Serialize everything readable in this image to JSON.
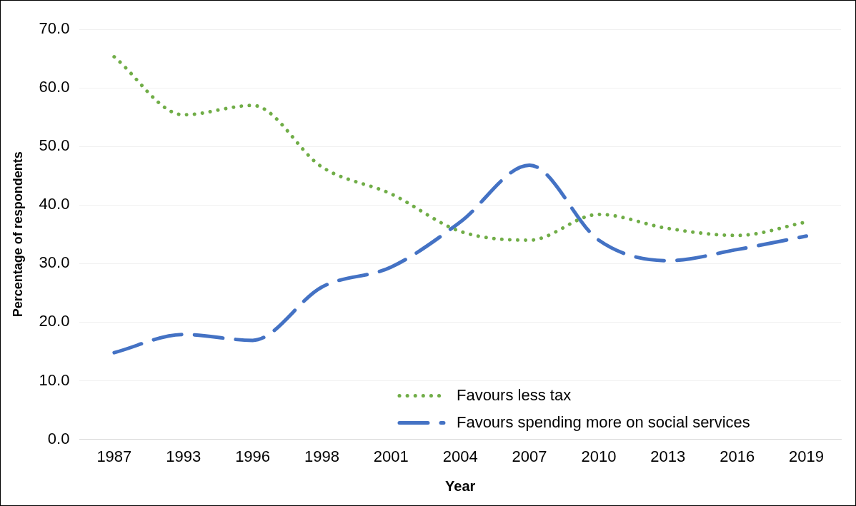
{
  "chart_data": {
    "type": "line",
    "xlabel": "Year",
    "ylabel": "Percentage of respondents",
    "categories": [
      "1987",
      "1993",
      "1996",
      "1998",
      "2001",
      "2004",
      "2007",
      "2010",
      "2013",
      "2016",
      "2019"
    ],
    "series": [
      {
        "name": "Favours less tax",
        "color": "#70ad47",
        "line_style": "dotted",
        "values": [
          65.3,
          55.4,
          57.0,
          46.5,
          41.9,
          35.5,
          34.0,
          38.4,
          36.0,
          34.8,
          37.1
        ]
      },
      {
        "name": "Favours spending more on social services",
        "color": "#4472c4",
        "line_style": "dashed",
        "values": [
          14.8,
          17.9,
          16.9,
          26.0,
          29.4,
          37.1,
          46.8,
          34.0,
          30.5,
          32.4,
          34.7
        ]
      }
    ],
    "ylim": [
      0,
      70
    ],
    "yticks": [
      {
        "value": 0,
        "label": "0.0"
      },
      {
        "value": 10,
        "label": "10.0"
      },
      {
        "value": 20,
        "label": "20.0"
      },
      {
        "value": 30,
        "label": "30.0"
      },
      {
        "value": 40,
        "label": "40.0"
      },
      {
        "value": 50,
        "label": "50.0"
      },
      {
        "value": 60,
        "label": "60.0"
      },
      {
        "value": 70,
        "label": "70.0"
      }
    ],
    "grid": "y",
    "legend": "bottom right",
    "marker": "none"
  }
}
